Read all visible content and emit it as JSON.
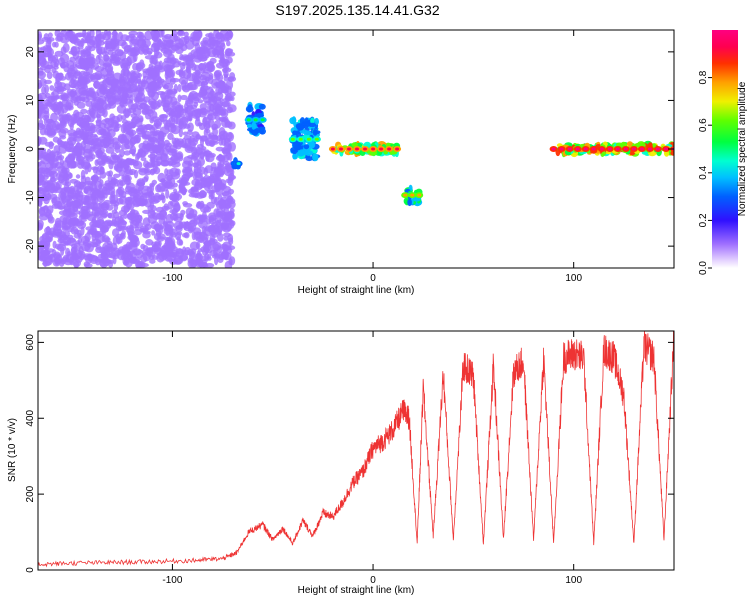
{
  "title": "S197.2025.135.14.41.G32",
  "chart_data": [
    {
      "type": "heatmap",
      "xlabel": "Height of straight line (km)",
      "ylabel": "Frequency (Hz)",
      "xlim": [
        -167,
        150
      ],
      "ylim": [
        -24.5,
        24.5
      ],
      "xticks": [
        -100,
        0,
        100
      ],
      "yticks": [
        -20,
        -10,
        0,
        10,
        20
      ],
      "colorbar": {
        "label": "Normalized spectral amplitude",
        "range": [
          0,
          1
        ],
        "ticks": [
          "0.0",
          "0.2",
          "0.4",
          "0.6",
          "0.8"
        ]
      },
      "features": [
        {
          "desc": "scattered low-amplitude noise",
          "x": [
            -167,
            -70
          ],
          "freq": [
            -24,
            24
          ],
          "amplitude": 0.15
        },
        {
          "desc": "isolated patch",
          "x": [
            -69,
            -67
          ],
          "freq": [
            -4,
            -2
          ],
          "amplitude": 0.3
        },
        {
          "desc": "isolated patch",
          "x": [
            -62,
            -55
          ],
          "freq": [
            3,
            9
          ],
          "amplitude": 0.35
        },
        {
          "desc": "isolated patch",
          "x": [
            -40,
            -28
          ],
          "freq": [
            -2,
            6
          ],
          "amplitude": 0.4
        },
        {
          "desc": "signal band",
          "x": [
            -20,
            12
          ],
          "freq": [
            -1,
            1
          ],
          "amplitude": 0.75
        },
        {
          "desc": "isolated patch",
          "x": [
            16,
            23
          ],
          "freq": [
            -11,
            -8
          ],
          "amplitude": 0.55
        },
        {
          "desc": "signal band",
          "x": [
            90,
            150
          ],
          "freq": [
            -1,
            1
          ],
          "amplitude": 0.85
        }
      ]
    },
    {
      "type": "line",
      "xlabel": "Height of straight line (km)",
      "ylabel": "SNR (10 * v/v)",
      "xlim": [
        -167,
        150
      ],
      "ylim": [
        0,
        630
      ],
      "xticks": [
        -100,
        0,
        100
      ],
      "yticks": [
        0,
        200,
        400,
        600
      ],
      "color": "#ee3333",
      "x": [
        -167,
        -150,
        -130,
        -110,
        -90,
        -75,
        -68,
        -62,
        -55,
        -50,
        -45,
        -40,
        -35,
        -30,
        -25,
        -20,
        -15,
        -10,
        -5,
        0,
        5,
        10,
        15,
        18,
        22,
        25,
        30,
        35,
        40,
        45,
        50,
        55,
        60,
        65,
        70,
        75,
        80,
        85,
        90,
        95,
        100,
        105,
        110,
        115,
        120,
        125,
        130,
        135,
        140,
        145,
        150
      ],
      "values": [
        15,
        18,
        20,
        22,
        25,
        30,
        45,
        100,
        120,
        80,
        110,
        70,
        130,
        90,
        150,
        140,
        180,
        230,
        260,
        320,
        340,
        370,
        420,
        400,
        70,
        480,
        90,
        520,
        80,
        540,
        510,
        70,
        540,
        80,
        520,
        550,
        80,
        560,
        70,
        560,
        570,
        560,
        70,
        580,
        560,
        460,
        70,
        590,
        560,
        80,
        620
      ]
    }
  ]
}
